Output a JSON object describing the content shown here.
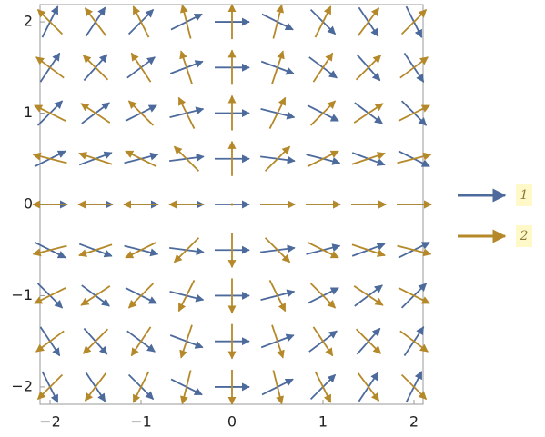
{
  "chart_data": {
    "type": "vector",
    "x": [
      -2,
      -1.5,
      -1,
      -0.5,
      0,
      0.5,
      1,
      1.5,
      2
    ],
    "y": [
      -2,
      -1.5,
      -1,
      -0.5,
      0,
      0.5,
      1,
      1.5,
      2
    ],
    "xlim": [
      -2.11,
      2.1
    ],
    "ylim": [
      -2.19,
      2.19
    ],
    "xticks": [
      {
        "value": -2,
        "label": "−2"
      },
      {
        "value": -1,
        "label": "−1"
      },
      0,
      1,
      2
    ],
    "yticks": [
      {
        "value": -2,
        "label": "−2"
      },
      {
        "value": -1,
        "label": "−1"
      },
      0,
      1,
      2
    ],
    "series": [
      {
        "name": "1",
        "color": "#4c6a9c",
        "u": [
          [
            1,
            1,
            1,
            1,
            1,
            1,
            1,
            1,
            1
          ],
          [
            1,
            1,
            1,
            1,
            1,
            1,
            1,
            1,
            1
          ],
          [
            1,
            1,
            1,
            1,
            1,
            1,
            1,
            1,
            1
          ],
          [
            1,
            1,
            1,
            1,
            1,
            1,
            1,
            1,
            1
          ],
          [
            1,
            1,
            1,
            1,
            1,
            1,
            1,
            1,
            1
          ],
          [
            1,
            1,
            1,
            1,
            1,
            1,
            1,
            1,
            1
          ],
          [
            1,
            1,
            1,
            1,
            1,
            1,
            1,
            1,
            1
          ],
          [
            1,
            1,
            1,
            1,
            1,
            1,
            1,
            1,
            1
          ],
          [
            1,
            1,
            1,
            1,
            1,
            1,
            1,
            1,
            1
          ]
        ],
        "v": [
          [
            -2,
            -1.5,
            -1,
            -0.5,
            0,
            0.5,
            1,
            1.5,
            2
          ],
          [
            -1.5,
            -1.125,
            -0.75,
            -0.375,
            0,
            0.375,
            0.75,
            1.125,
            1.5
          ],
          [
            -1,
            -0.75,
            -0.5,
            -0.25,
            0,
            0.25,
            0.5,
            0.75,
            1
          ],
          [
            -0.5,
            -0.375,
            -0.25,
            -0.125,
            0,
            0.125,
            0.25,
            0.375,
            0.5
          ],
          [
            0,
            0,
            0,
            0,
            0,
            0,
            0,
            0,
            0
          ],
          [
            0.5,
            0.375,
            0.25,
            0.125,
            0,
            -0.125,
            -0.25,
            -0.375,
            -0.5
          ],
          [
            1,
            0.75,
            0.5,
            0.25,
            0,
            -0.25,
            -0.5,
            -0.75,
            -1
          ],
          [
            1.5,
            1.125,
            0.75,
            0.375,
            0,
            -0.375,
            -0.75,
            -1.125,
            -1.5
          ],
          [
            2,
            1.5,
            1,
            0.5,
            0,
            -0.5,
            -1,
            -1.5,
            -2
          ]
        ]
      },
      {
        "name": "2",
        "color": "#b5892a",
        "u": [
          [
            -2,
            -1.5,
            -1,
            -0.5,
            0,
            0.5,
            1,
            1.5,
            2
          ],
          [
            -2,
            -1.5,
            -1,
            -0.5,
            0,
            0.5,
            1,
            1.5,
            2
          ],
          [
            -2,
            -1.5,
            -1,
            -0.5,
            0,
            0.5,
            1,
            1.5,
            2
          ],
          [
            -2,
            -1.5,
            -1,
            -0.5,
            0,
            0.5,
            1,
            1.5,
            2
          ],
          [
            -2,
            -1.5,
            -1,
            -0.5,
            0,
            0.5,
            1,
            1.5,
            2
          ],
          [
            -2,
            -1.5,
            -1,
            -0.5,
            0,
            0.5,
            1,
            1.5,
            2
          ],
          [
            -2,
            -1.5,
            -1,
            -0.5,
            0,
            0.5,
            1,
            1.5,
            2
          ],
          [
            -2,
            -1.5,
            -1,
            -0.5,
            0,
            0.5,
            1,
            1.5,
            2
          ],
          [
            -2,
            -1.5,
            -1,
            -0.5,
            0,
            0.5,
            1,
            1.5,
            2
          ]
        ],
        "v": [
          [
            -2,
            -2,
            -2,
            -2,
            -2,
            -2,
            -2,
            -2,
            -2
          ],
          [
            -1.5,
            -1.5,
            -1.5,
            -1.5,
            -1.5,
            -1.5,
            -1.5,
            -1.5,
            -1.5
          ],
          [
            -1,
            -1,
            -1,
            -1,
            -1,
            -1,
            -1,
            -1,
            -1
          ],
          [
            -0.5,
            -0.5,
            -0.5,
            -0.5,
            -0.5,
            -0.5,
            -0.5,
            -0.5,
            -0.5
          ],
          [
            0,
            0,
            0,
            0,
            0,
            0,
            0,
            0,
            0
          ],
          [
            0.5,
            0.5,
            0.5,
            0.5,
            0.5,
            0.5,
            0.5,
            0.5,
            0.5
          ],
          [
            1,
            1,
            1,
            1,
            1,
            1,
            1,
            1,
            1
          ],
          [
            1.5,
            1.5,
            1.5,
            1.5,
            1.5,
            1.5,
            1.5,
            1.5,
            1.5
          ],
          [
            2,
            2,
            2,
            2,
            2,
            2,
            2,
            2,
            2
          ]
        ]
      }
    ]
  }
}
